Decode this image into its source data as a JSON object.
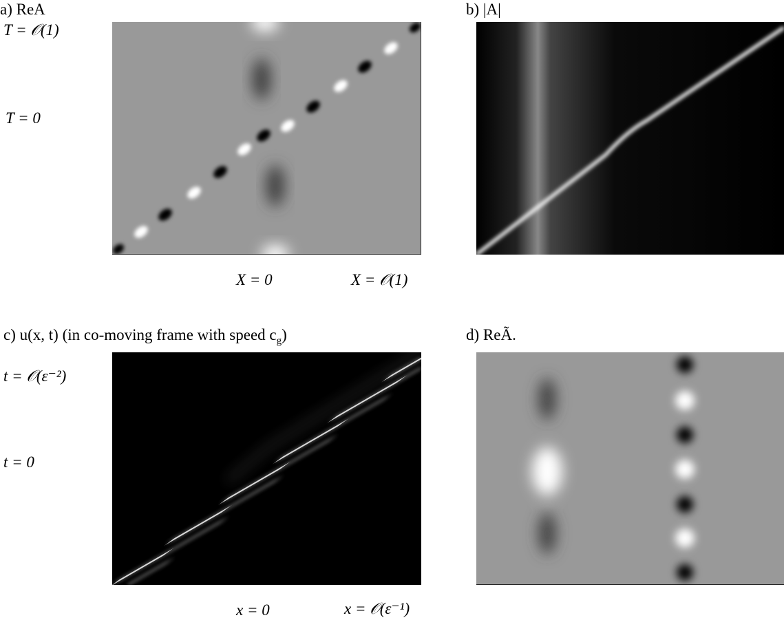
{
  "panels": {
    "a": {
      "label": "a) ReA",
      "y_top": "T = 𝒪(1)",
      "y_mid": "T = 0",
      "x_mid": "X = 0",
      "x_right": "X = 𝒪(1)"
    },
    "b": {
      "label": "b) |A|"
    },
    "c": {
      "label": "c) u(x, t) (in co-moving frame with speed c",
      "label_sub": "g",
      "label_end": ")",
      "y_top": "t = 𝒪(ε⁻²)",
      "y_mid": "t = 0",
      "x_mid": "x = 0",
      "x_right": "x = 𝒪(ε⁻¹)"
    },
    "d": {
      "label": "d) ReÃ."
    }
  }
}
